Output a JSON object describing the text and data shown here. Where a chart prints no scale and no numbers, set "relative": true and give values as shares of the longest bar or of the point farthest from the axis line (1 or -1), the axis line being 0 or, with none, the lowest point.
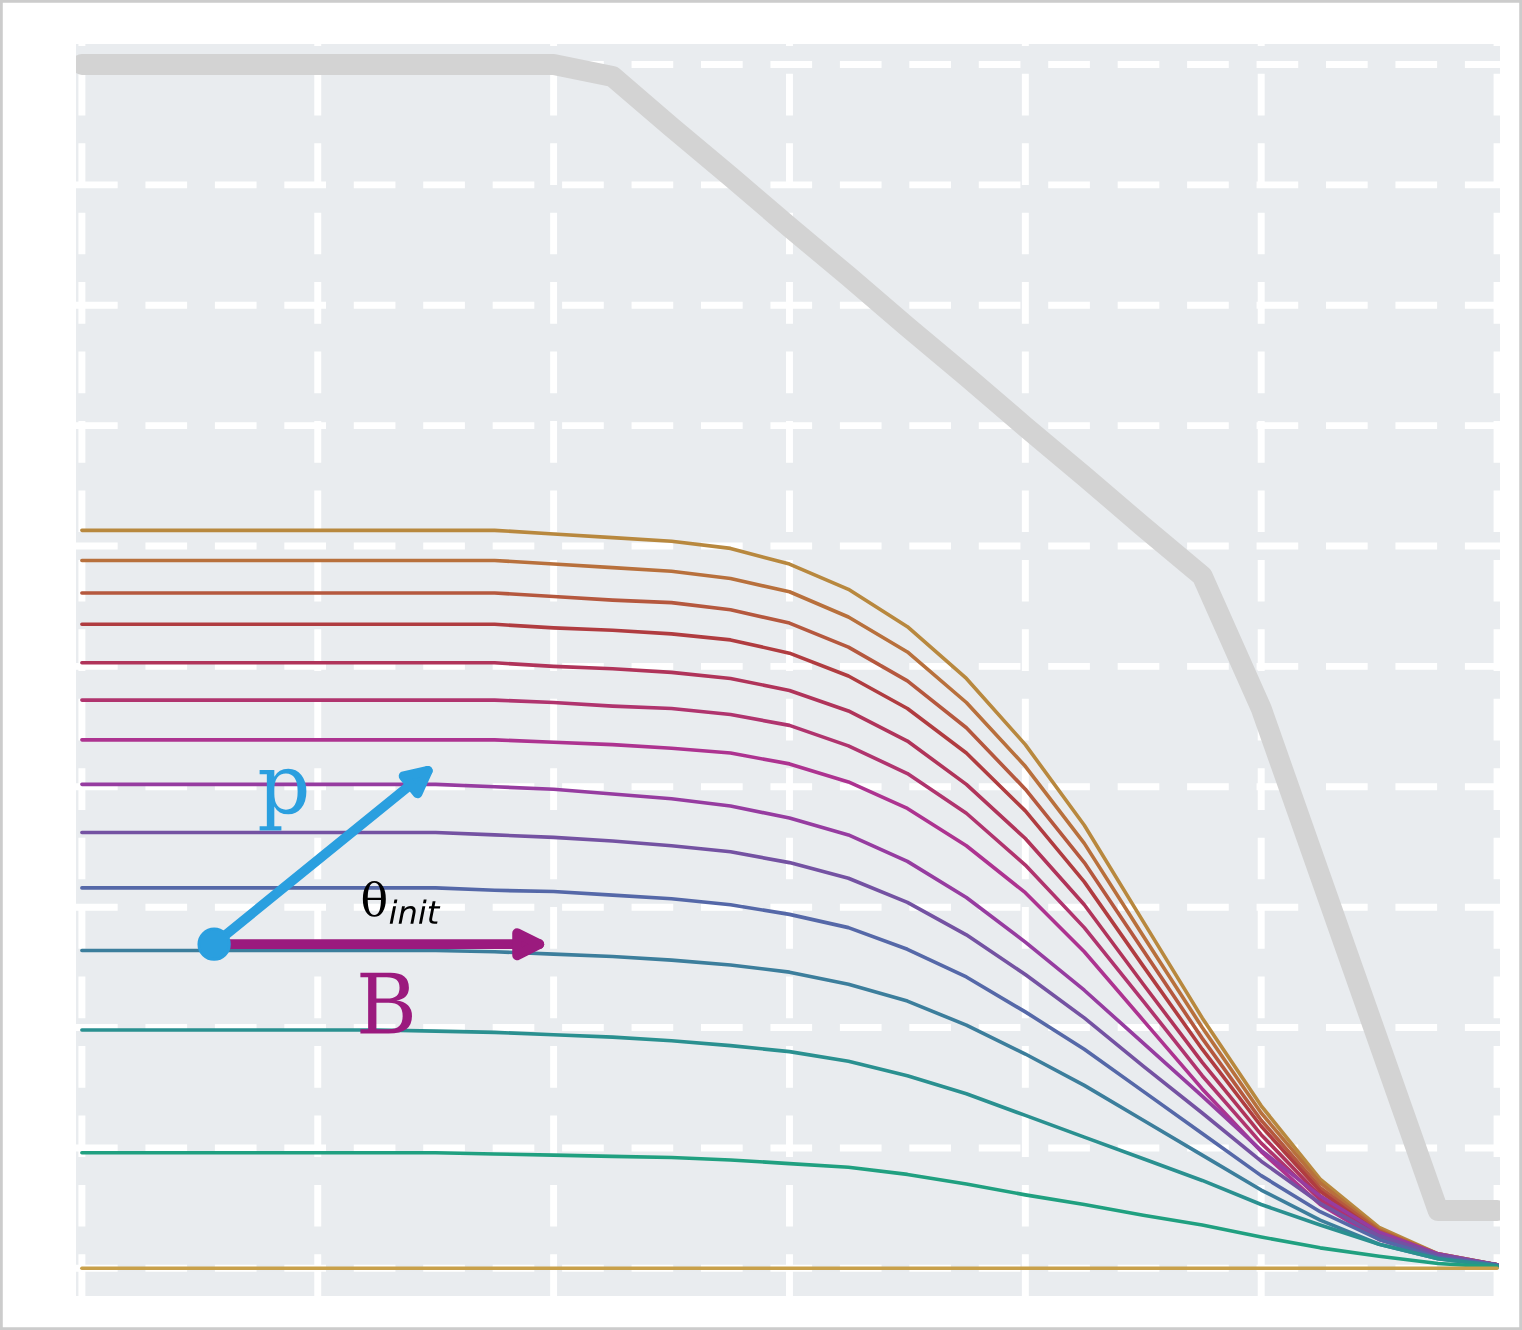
{
  "chart_data": {
    "type": "line",
    "relative": true,
    "grid": true,
    "legend": false,
    "tick_labels": false,
    "marker": "none",
    "categories": [
      null,
      null,
      null,
      null,
      null,
      null,
      null,
      null,
      null,
      null,
      null,
      null,
      null,
      null,
      null,
      null,
      null,
      null,
      null,
      null,
      null,
      null,
      null,
      null,
      null
    ],
    "annotations": [
      "p",
      "θ$_{init}$",
      "B"
    ],
    "series": [
      {
        "color": "#d3d3d3",
        "values": [
          1,
          1,
          1,
          1,
          1,
          1,
          1,
          1,
          1,
          0.99,
          0.948,
          0.907,
          0.865,
          0.824,
          0.782,
          0.741,
          0.699,
          0.658,
          0.616,
          0.575,
          0.465,
          0.326,
          0.187,
          0.048,
          0.048
        ]
      },
      {
        "color": "#b8883e",
        "values": [
          0.613,
          0.613,
          0.613,
          0.613,
          0.613,
          0.613,
          0.613,
          0.613,
          0.61,
          0.607,
          0.604,
          0.598,
          0.585,
          0.564,
          0.533,
          0.49,
          0.435,
          0.368,
          0.288,
          0.208,
          0.135,
          0.074,
          0.034,
          0.012,
          0.003
        ]
      },
      {
        "color": "#b8703c",
        "values": [
          0.588,
          0.588,
          0.588,
          0.588,
          0.588,
          0.588,
          0.588,
          0.588,
          0.585,
          0.582,
          0.579,
          0.573,
          0.562,
          0.541,
          0.512,
          0.47,
          0.417,
          0.353,
          0.276,
          0.2,
          0.129,
          0.071,
          0.032,
          0.012,
          0.003
        ]
      },
      {
        "color": "#b5583e",
        "values": [
          0.561,
          0.561,
          0.561,
          0.561,
          0.561,
          0.561,
          0.561,
          0.561,
          0.558,
          0.555,
          0.553,
          0.547,
          0.536,
          0.516,
          0.488,
          0.449,
          0.398,
          0.337,
          0.264,
          0.191,
          0.123,
          0.067,
          0.031,
          0.011,
          0.003
        ]
      },
      {
        "color": "#b03c40",
        "values": [
          0.535,
          0.535,
          0.535,
          0.535,
          0.535,
          0.535,
          0.535,
          0.535,
          0.532,
          0.53,
          0.527,
          0.522,
          0.511,
          0.492,
          0.465,
          0.428,
          0.38,
          0.321,
          0.251,
          0.182,
          0.118,
          0.064,
          0.029,
          0.011,
          0.003
        ]
      },
      {
        "color": "#b0345a",
        "values": [
          0.503,
          0.503,
          0.503,
          0.503,
          0.503,
          0.503,
          0.503,
          0.503,
          0.5,
          0.498,
          0.495,
          0.49,
          0.48,
          0.463,
          0.438,
          0.402,
          0.357,
          0.302,
          0.236,
          0.171,
          0.111,
          0.06,
          0.028,
          0.01,
          0.003
        ]
      },
      {
        "color": "#b0346e",
        "values": [
          0.472,
          0.472,
          0.472,
          0.472,
          0.472,
          0.472,
          0.472,
          0.472,
          0.47,
          0.467,
          0.465,
          0.46,
          0.451,
          0.434,
          0.411,
          0.378,
          0.335,
          0.283,
          0.222,
          0.16,
          0.104,
          0.057,
          0.026,
          0.009,
          0.002
        ]
      },
      {
        "color": "#ad3390",
        "values": [
          0.439,
          0.439,
          0.439,
          0.439,
          0.439,
          0.439,
          0.439,
          0.439,
          0.437,
          0.435,
          0.432,
          0.428,
          0.419,
          0.404,
          0.382,
          0.351,
          0.312,
          0.263,
          0.206,
          0.149,
          0.097,
          0.053,
          0.024,
          0.009,
          0.002
        ]
      },
      {
        "color": "#963ca0",
        "values": [
          0.402,
          0.402,
          0.402,
          0.402,
          0.402,
          0.402,
          0.402,
          0.4,
          0.398,
          0.394,
          0.39,
          0.384,
          0.374,
          0.36,
          0.338,
          0.308,
          0.271,
          0.231,
          0.187,
          0.143,
          0.098,
          0.06,
          0.03,
          0.012,
          0.003
        ]
      },
      {
        "color": "#7452a2",
        "values": [
          0.362,
          0.362,
          0.362,
          0.362,
          0.362,
          0.362,
          0.362,
          0.36,
          0.358,
          0.355,
          0.351,
          0.346,
          0.337,
          0.324,
          0.304,
          0.277,
          0.244,
          0.208,
          0.168,
          0.129,
          0.089,
          0.054,
          0.027,
          0.011,
          0.003
        ]
      },
      {
        "color": "#5568a8",
        "values": [
          0.316,
          0.316,
          0.316,
          0.316,
          0.316,
          0.316,
          0.316,
          0.314,
          0.313,
          0.31,
          0.307,
          0.302,
          0.294,
          0.283,
          0.265,
          0.242,
          0.213,
          0.182,
          0.147,
          0.112,
          0.077,
          0.047,
          0.024,
          0.009,
          0.003
        ]
      },
      {
        "color": "#3c7e9c",
        "values": [
          0.264,
          0.264,
          0.264,
          0.264,
          0.264,
          0.264,
          0.264,
          0.263,
          0.261,
          0.259,
          0.256,
          0.252,
          0.246,
          0.236,
          0.222,
          0.202,
          0.178,
          0.152,
          0.123,
          0.094,
          0.065,
          0.04,
          0.02,
          0.008,
          0.002
        ]
      },
      {
        "color": "#2a9090",
        "values": [
          0.198,
          0.198,
          0.198,
          0.198,
          0.198,
          0.198,
          0.197,
          0.196,
          0.194,
          0.192,
          0.189,
          0.185,
          0.18,
          0.172,
          0.16,
          0.145,
          0.127,
          0.109,
          0.091,
          0.073,
          0.053,
          0.036,
          0.02,
          0.008,
          0.002
        ]
      },
      {
        "color": "#20a080",
        "values": [
          0.096,
          0.096,
          0.096,
          0.096,
          0.096,
          0.096,
          0.096,
          0.095,
          0.094,
          0.093,
          0.092,
          0.09,
          0.087,
          0.084,
          0.078,
          0.07,
          0.061,
          0.053,
          0.044,
          0.036,
          0.026,
          0.017,
          0.01,
          0.004,
          0.001
        ]
      },
      {
        "color": "#c8a04a",
        "values": [
          0,
          0,
          0,
          0,
          0,
          0,
          0,
          0,
          0,
          0,
          0,
          0,
          0,
          0,
          0,
          0,
          0,
          0,
          0,
          0,
          0,
          0,
          0,
          0,
          0
        ]
      }
    ]
  }
}
